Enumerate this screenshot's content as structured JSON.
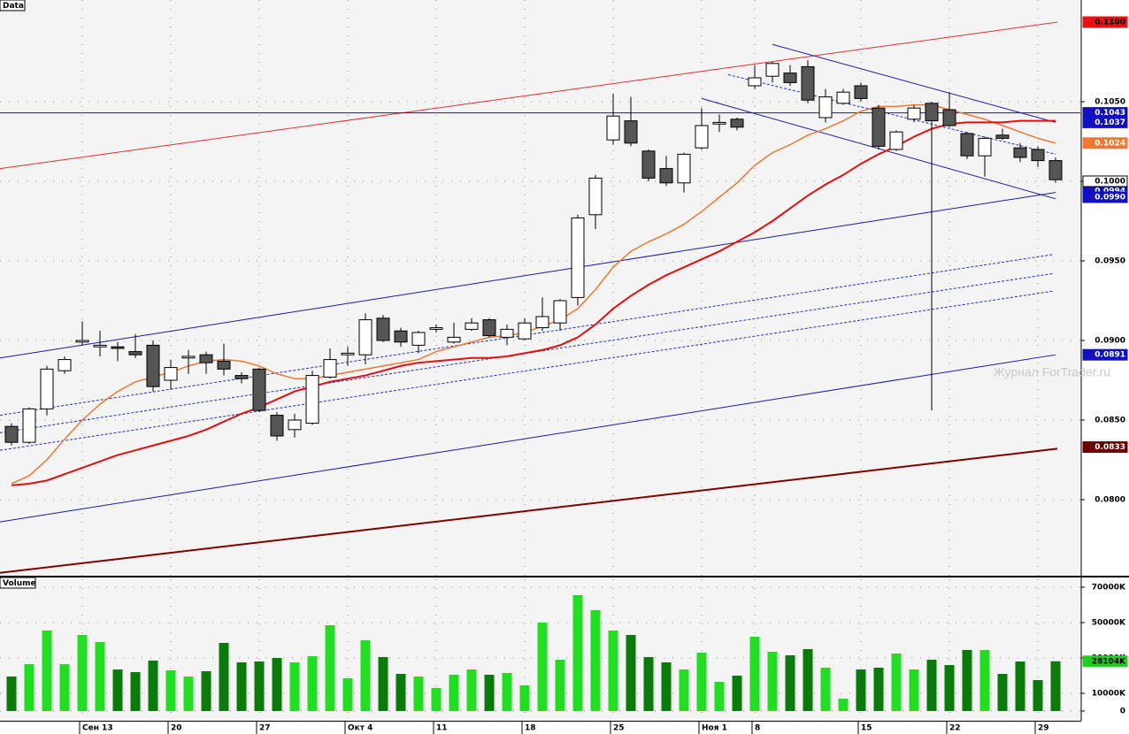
{
  "chart_data": [
    {
      "type": "candlestick",
      "title": "Data",
      "watermark": "Журнал ForTrader.ru",
      "categories": [
        null,
        null,
        null,
        null,
        "Сен 13",
        null,
        null,
        null,
        null,
        "20",
        null,
        null,
        null,
        null,
        "27",
        null,
        null,
        null,
        null,
        "Окт 4",
        null,
        null,
        null,
        null,
        "11",
        null,
        null,
        null,
        null,
        "18",
        null,
        null,
        null,
        null,
        "25",
        null,
        null,
        null,
        null,
        "Ноя 1",
        null,
        null,
        "8",
        null,
        null,
        null,
        null,
        null,
        "15",
        null,
        null,
        null,
        null,
        "22",
        null,
        null,
        null,
        null,
        "29",
        null
      ],
      "open": [
        0.0846,
        0.0836,
        0.0857,
        0.0881,
        0.0899,
        0.0896,
        0.0896,
        0.0893,
        0.0897,
        0.0875,
        0.0889,
        0.0891,
        0.0887,
        0.0878,
        0.0882,
        0.0853,
        0.0844,
        0.0848,
        0.0877,
        0.0891,
        0.0891,
        0.0914,
        0.0906,
        0.0897,
        0.0907,
        0.0899,
        0.0907,
        0.0913,
        0.0902,
        0.0901,
        0.0908,
        0.0911,
        0.0927,
        0.0979,
        0.1026,
        0.1038,
        0.1019,
        0.1008,
        0.0999,
        0.1021,
        0.1036,
        0.1039,
        0.106,
        0.1066,
        0.1068,
        0.1072,
        0.104,
        0.1049,
        0.106,
        0.1046,
        0.102,
        0.1039,
        0.1049,
        0.1045,
        0.103,
        0.1016,
        0.1029,
        0.1021,
        0.102,
        0.1013
      ],
      "high": [
        0.0848,
        0.0858,
        0.0884,
        0.089,
        0.0912,
        0.0906,
        0.0899,
        0.0904,
        0.09,
        0.0888,
        0.0894,
        0.0893,
        0.0898,
        0.088,
        0.0883,
        0.0855,
        0.0854,
        0.0881,
        0.0895,
        0.0896,
        0.0917,
        0.0916,
        0.0908,
        0.0906,
        0.091,
        0.0911,
        0.0914,
        0.0914,
        0.091,
        0.0914,
        0.0927,
        0.0926,
        0.0979,
        0.1004,
        0.1055,
        0.1053,
        0.102,
        0.1016,
        0.1018,
        0.1046,
        0.1042,
        0.104,
        0.1073,
        0.1075,
        0.1073,
        0.1076,
        0.1058,
        0.1058,
        0.1062,
        0.1048,
        0.1032,
        0.1048,
        0.105,
        0.1056,
        0.1031,
        0.1028,
        0.1033,
        0.1024,
        0.1022,
        0.1015
      ],
      "low": [
        0.0834,
        0.0835,
        0.0853,
        0.0879,
        0.0897,
        0.089,
        0.0887,
        0.0889,
        0.0868,
        0.0869,
        0.0879,
        0.0879,
        0.0878,
        0.0873,
        0.0855,
        0.0837,
        0.0839,
        0.0847,
        0.0876,
        0.0884,
        0.0885,
        0.0899,
        0.0896,
        0.0892,
        0.0905,
        0.0898,
        0.0906,
        0.0902,
        0.0897,
        0.09,
        0.0906,
        0.0906,
        0.0922,
        0.097,
        0.1023,
        0.1022,
        0.1,
        0.0997,
        0.0993,
        0.102,
        0.1031,
        0.1032,
        0.1058,
        0.1062,
        0.106,
        0.1049,
        0.1037,
        0.1048,
        0.105,
        0.102,
        0.1019,
        0.1037,
        0.0856,
        0.1034,
        0.1014,
        0.1003,
        0.1026,
        0.1012,
        0.1009,
        0.0999
      ],
      "close": [
        0.0836,
        0.0857,
        0.0882,
        0.0888,
        0.09,
        0.0897,
        0.0895,
        0.0891,
        0.0871,
        0.0883,
        0.089,
        0.0886,
        0.0882,
        0.0876,
        0.0856,
        0.084,
        0.085,
        0.0878,
        0.0888,
        0.0892,
        0.0913,
        0.09,
        0.0899,
        0.0905,
        0.0908,
        0.0902,
        0.0911,
        0.0903,
        0.0907,
        0.0911,
        0.0915,
        0.0925,
        0.0977,
        0.1002,
        0.1041,
        0.1024,
        0.1002,
        0.0999,
        0.1017,
        0.1035,
        0.1037,
        0.1034,
        0.1065,
        0.1074,
        0.1062,
        0.1051,
        0.1053,
        0.1056,
        0.1052,
        0.1022,
        0.1031,
        0.1046,
        0.1038,
        0.1035,
        0.1016,
        0.1027,
        0.1027,
        0.1015,
        0.1013,
        0.1001
      ],
      "up_color": "#ffffff",
      "down_color": "#555555",
      "series": [
        {
          "color": "#f07830",
          "values": [
            0.081,
            0.0815,
            0.0825,
            0.0838,
            0.085,
            0.086,
            0.0868,
            0.0874,
            0.0877,
            0.088,
            0.0884,
            0.0887,
            0.0888,
            0.0887,
            0.0884,
            0.0879,
            0.0876,
            0.0876,
            0.0878,
            0.088,
            0.0882,
            0.0884,
            0.0886,
            0.0888,
            0.0893,
            0.0896,
            0.0899,
            0.0902,
            0.0903,
            0.0905,
            0.0909,
            0.0913,
            0.092,
            0.0932,
            0.0946,
            0.0956,
            0.0962,
            0.0967,
            0.0973,
            0.0981,
            0.099,
            0.0999,
            0.101,
            0.1018,
            0.1023,
            0.1029,
            0.1033,
            0.1038,
            0.1044,
            0.1047,
            0.1047,
            0.1048,
            0.1048,
            0.1045,
            0.1042,
            0.1039,
            0.1035,
            0.1031,
            0.1027,
            0.1024
          ]
        },
        {
          "color": "#e01010",
          "values": [
            0.0809,
            0.081,
            0.0812,
            0.0816,
            0.082,
            0.0824,
            0.0828,
            0.0831,
            0.0834,
            0.0837,
            0.084,
            0.0844,
            0.0849,
            0.0854,
            0.0858,
            0.0863,
            0.0868,
            0.0871,
            0.0874,
            0.0876,
            0.0878,
            0.0881,
            0.0884,
            0.0886,
            0.0887,
            0.0888,
            0.0889,
            0.0889,
            0.089,
            0.0892,
            0.0894,
            0.0897,
            0.0902,
            0.091,
            0.092,
            0.0928,
            0.0935,
            0.0941,
            0.0946,
            0.0951,
            0.0956,
            0.0962,
            0.0968,
            0.0975,
            0.0983,
            0.0991,
            0.0998,
            0.1004,
            0.1011,
            0.1017,
            0.1022,
            0.1028,
            0.1033,
            0.1036,
            0.1037,
            0.1037,
            0.1037,
            0.1038,
            0.1038,
            0.1038
          ]
        }
      ],
      "trendlines": [
        {
          "from": [
            -0.65,
            0.1008
          ],
          "to": [
            59.1,
            0.11
          ],
          "color": "#e03030",
          "dash": false
        },
        {
          "from": [
            -0.65,
            0.0889
          ],
          "to": [
            59.0,
            0.0993
          ],
          "color": "#1a1aa0",
          "dash": false
        },
        {
          "from": [
            -0.65,
            0.0786
          ],
          "to": [
            59.0,
            0.0891
          ],
          "color": "#1a1aa0",
          "dash": false
        },
        {
          "from": [
            -0.65,
            0.0853
          ],
          "to": [
            58.85,
            0.0954
          ],
          "color": "#2030c0",
          "dash": true
        },
        {
          "from": [
            -0.65,
            0.0842
          ],
          "to": [
            58.85,
            0.0942
          ],
          "color": "#2030c0",
          "dash": true
        },
        {
          "from": [
            -0.65,
            0.0831
          ],
          "to": [
            58.85,
            0.0931
          ],
          "color": "#2030c0",
          "dash": true
        },
        {
          "from": [
            -0.65,
            0.1043
          ],
          "to": [
            60.4,
            0.1043
          ],
          "color": "#1a1aa0",
          "dash": false
        },
        {
          "from": [
            43.0,
            0.1086
          ],
          "to": [
            59.0,
            0.1037
          ],
          "color": "#1a1aa0",
          "dash": false
        },
        {
          "from": [
            39.0,
            0.1052
          ],
          "to": [
            59.0,
            0.0989
          ],
          "color": "#1a1aa0",
          "dash": false
        },
        {
          "from": [
            40.5,
            0.1067
          ],
          "to": [
            59.0,
            0.1017
          ],
          "color": "#2030c0",
          "dash": true
        },
        {
          "from": [
            -0.65,
            0.0754
          ],
          "to": [
            59.1,
            0.0832
          ],
          "color": "#800000",
          "dash": false
        }
      ],
      "ylim": [
        0.07522,
        0.11139
      ],
      "yticks": [
        {
          "value": 0.08,
          "label": "0.0800"
        },
        {
          "value": 0.085,
          "label": "0.0850"
        },
        {
          "value": 0.09,
          "label": "0.0900"
        },
        {
          "value": 0.095,
          "label": "0.0950"
        },
        {
          "value": 0.1,
          "label": "0.1000"
        },
        {
          "value": 0.105,
          "label": "0.1050"
        }
      ],
      "price_labels": [
        {
          "value": 0.11,
          "label": "0.1100",
          "color": "#e81010",
          "text_color": "#000000"
        },
        {
          "value": 0.1043,
          "label": "0.1043",
          "color": "#1010c0",
          "text_color": "#ffffff"
        },
        {
          "value": 0.1037,
          "label": "0.1037",
          "color": "#1010c0",
          "text_color": "#ffffff"
        },
        {
          "value": 0.1024,
          "label": "0.1024",
          "color": "#f07830",
          "text_color": "#ffffff"
        },
        {
          "value": 0.0994,
          "label": "0.0994",
          "color": "#1010c0",
          "text_color": "#ffffff"
        },
        {
          "value": 0.099,
          "label": "0.0990",
          "color": "#1010c0",
          "text_color": "#ffffff"
        },
        {
          "value": 0.1,
          "label": "0.1000",
          "color": "#ffffff",
          "text_color": "#000000"
        },
        {
          "value": 0.0891,
          "label": "0.0891",
          "color": "#1010c0",
          "text_color": "#ffffff"
        },
        {
          "value": 0.0833,
          "label": "0.0833",
          "color": "#700000",
          "text_color": "#ffffff"
        }
      ]
    },
    {
      "type": "bar",
      "title": "Volume",
      "values": [
        19500,
        26500,
        45500,
        26500,
        43000,
        39000,
        23500,
        22000,
        28500,
        23000,
        19500,
        22500,
        38500,
        27500,
        28000,
        30000,
        27500,
        31000,
        48500,
        18500,
        40000,
        30500,
        21000,
        19500,
        13000,
        20500,
        23500,
        20500,
        21500,
        14500,
        50000,
        29000,
        65500,
        57000,
        45500,
        43000,
        30500,
        27500,
        23500,
        33000,
        16500,
        20000,
        42000,
        33500,
        31500,
        35000,
        24500,
        7000,
        23500,
        24500,
        32500,
        23500,
        29000,
        26000,
        34500,
        34500,
        21000,
        28000,
        17500,
        28104
      ],
      "up_color": "#22dd22",
      "down_color": "#0a7a0a",
      "ylim": [
        0,
        74500
      ],
      "yticks": [
        0,
        {
          "value": 10000,
          "label": "10000K"
        },
        {
          "value": 30000,
          "label": "30000K"
        },
        {
          "value": 50000,
          "label": "50000K"
        },
        {
          "value": 70000,
          "label": "70000K"
        }
      ],
      "price_labels": [
        {
          "value": 28104,
          "label": "28104K",
          "color": "#22cc22",
          "text_color": "#000000"
        }
      ]
    }
  ]
}
